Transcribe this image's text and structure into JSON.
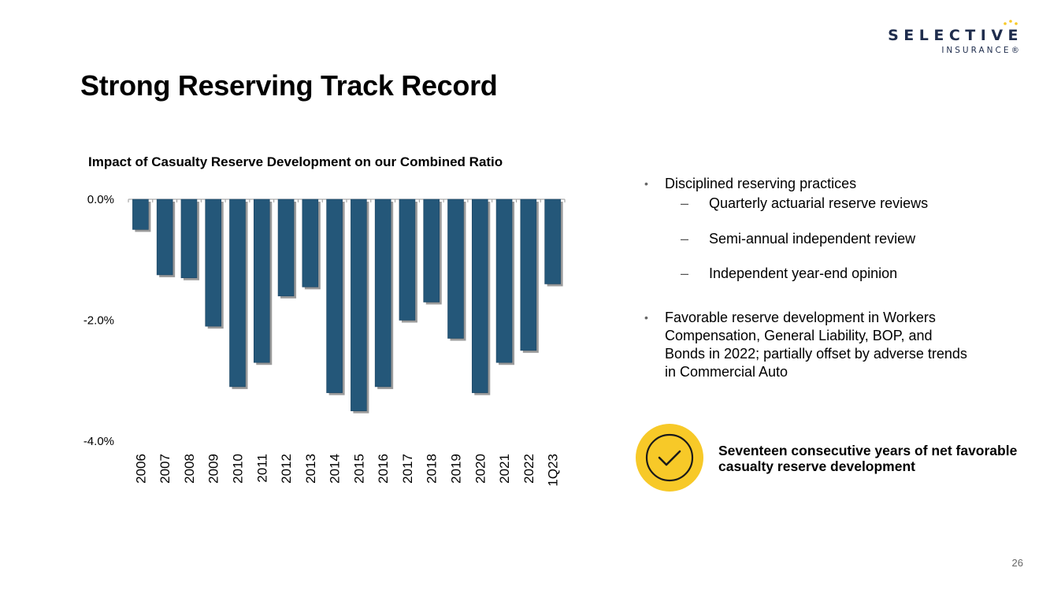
{
  "logo": {
    "name": "SELECTIVE",
    "sub": "INSURANCE®"
  },
  "title": "Strong Reserving Track Record",
  "chart_data": {
    "type": "bar",
    "title": "Impact of Casualty Reserve Development on our Combined Ratio",
    "categories": [
      "2006",
      "2007",
      "2008",
      "2009",
      "2010",
      "2011",
      "2012",
      "2013",
      "2014",
      "2015",
      "2016",
      "2017",
      "2018",
      "2019",
      "2020",
      "2021",
      "2022",
      "1Q23"
    ],
    "values": [
      -0.5,
      -1.25,
      -1.3,
      -2.1,
      -3.1,
      -2.7,
      -1.6,
      -1.45,
      -3.2,
      -3.5,
      -3.1,
      -2.0,
      -1.7,
      -2.3,
      -3.2,
      -2.7,
      -2.5,
      -1.4
    ],
    "ylim": [
      -4.0,
      0.0
    ],
    "yticks": [
      "0.0%",
      "-2.0%",
      "-4.0%"
    ],
    "ytick_values": [
      0,
      -2,
      -4
    ],
    "bar_color": "#245779",
    "grid": false,
    "legend": "none"
  },
  "bullets": [
    {
      "text": "Disciplined reserving practices",
      "subs": [
        "Quarterly actuarial reserve reviews",
        "Semi-annual independent review",
        "Independent year-end opinion"
      ]
    },
    {
      "text": "Favorable reserve development in Workers Compensation, General Liability, BOP, and Bonds in 2022; partially offset by adverse trends in Commercial Auto"
    }
  ],
  "callout": "Seventeen consecutive years of net favorable casualty reserve development",
  "icon": "checkmark-circle-icon",
  "colors": {
    "badge": "#f7c928",
    "navy": "#1f2d4d"
  },
  "page_number": "26"
}
